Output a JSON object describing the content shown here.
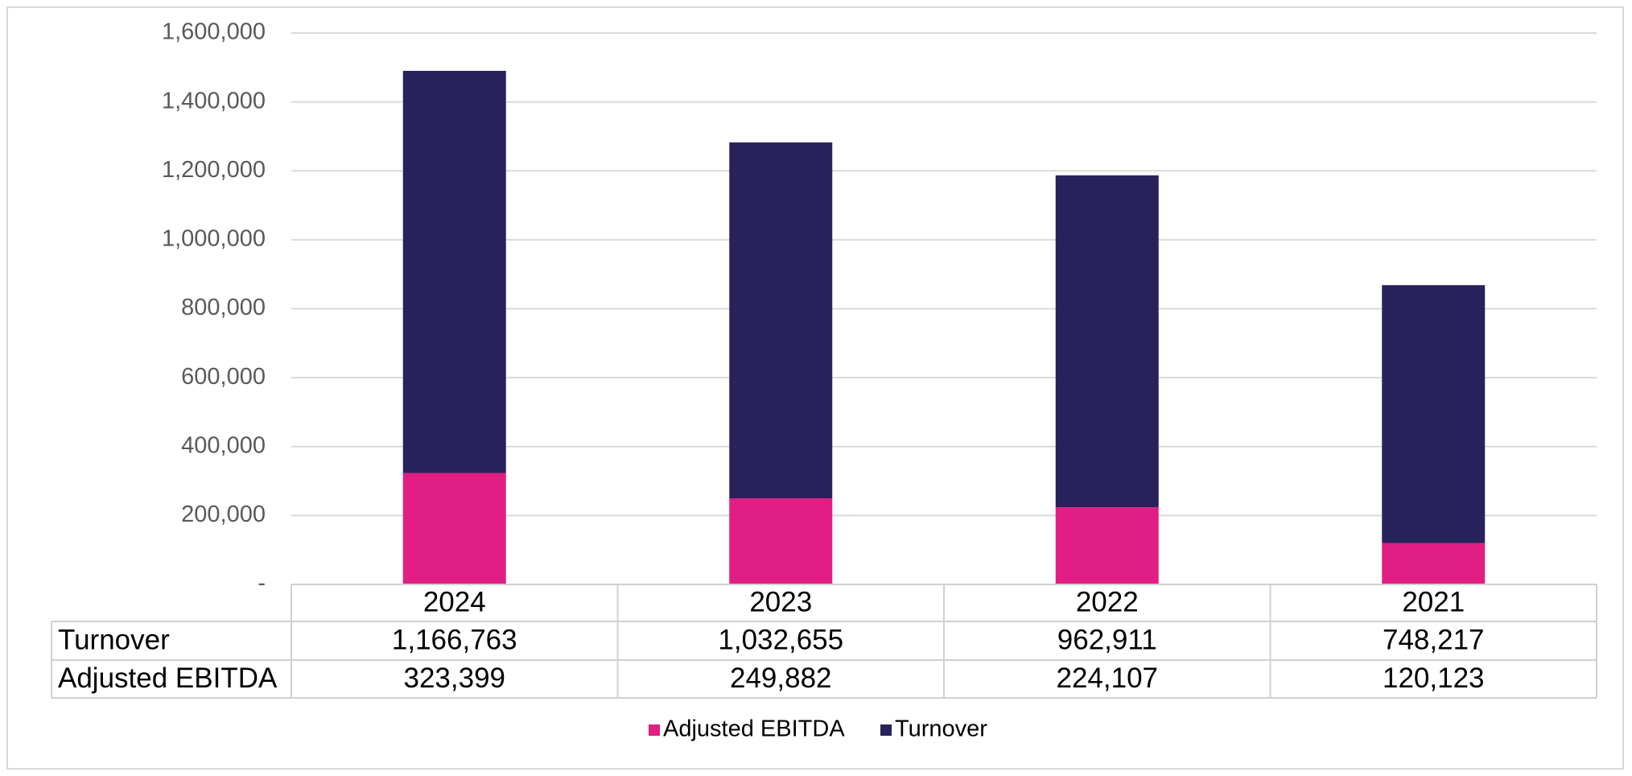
{
  "chart_data": {
    "type": "bar",
    "stacked": true,
    "categories": [
      "2024",
      "2023",
      "2022",
      "2021"
    ],
    "series": [
      {
        "name": "Adjusted EBITDA",
        "values": [
          323399,
          249882,
          224107,
          120123
        ],
        "color": "#e01e83"
      },
      {
        "name": "Turnover",
        "values": [
          1166763,
          1032655,
          962911,
          748217
        ],
        "color": "#27225b"
      }
    ],
    "yticks": [
      "-",
      "200,000",
      "400,000",
      "600,000",
      "800,000",
      "1,000,000",
      "1,200,000",
      "1,400,000",
      "1,600,000"
    ],
    "ylim": [
      0,
      1600000
    ],
    "grid": true,
    "data_table": {
      "rows": [
        {
          "label": "Turnover",
          "values": [
            "1,166,763",
            "1,032,655",
            "962,911",
            "748,217"
          ]
        },
        {
          "label": "Adjusted EBITDA",
          "values": [
            "323,399",
            "249,882",
            "224,107",
            "120,123"
          ]
        }
      ]
    },
    "legend": {
      "position": "bottom",
      "items": [
        {
          "label": "Adjusted EBITDA",
          "color": "#e01e83"
        },
        {
          "label": "Turnover",
          "color": "#27225b"
        }
      ]
    }
  }
}
